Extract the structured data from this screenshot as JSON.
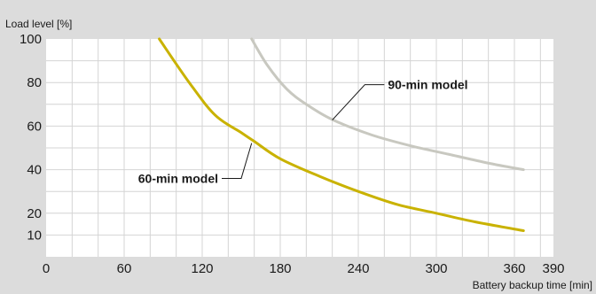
{
  "chart_data": {
    "type": "line",
    "xlabel": "Battery backup time [min]",
    "ylabel": "Load level [%]",
    "xlim": [
      0,
      390
    ],
    "ylim": [
      0,
      100
    ],
    "grid": true,
    "xticks": [
      0,
      60,
      120,
      180,
      240,
      300,
      360,
      390
    ],
    "yticks": [
      10,
      20,
      40,
      60,
      80,
      100
    ],
    "series": [
      {
        "name": "60-min model",
        "color": "#c9b200",
        "x": [
          87,
          110,
          130,
          150,
          160,
          180,
          210,
          240,
          270,
          300,
          330,
          367
        ],
        "y": [
          100,
          80,
          65,
          57,
          53,
          45,
          37,
          30,
          24,
          20,
          16,
          12
        ]
      },
      {
        "name": "90-min model",
        "color": "#c8c8c0",
        "x": [
          158,
          170,
          185,
          200,
          220,
          250,
          280,
          310,
          340,
          367
        ],
        "y": [
          100,
          88,
          77,
          70,
          63,
          56,
          51,
          47,
          43,
          40
        ]
      }
    ],
    "annotations": [
      {
        "text": "90-min model",
        "series": "90-min model"
      },
      {
        "text": "60-min model",
        "series": "60-min model"
      }
    ]
  }
}
